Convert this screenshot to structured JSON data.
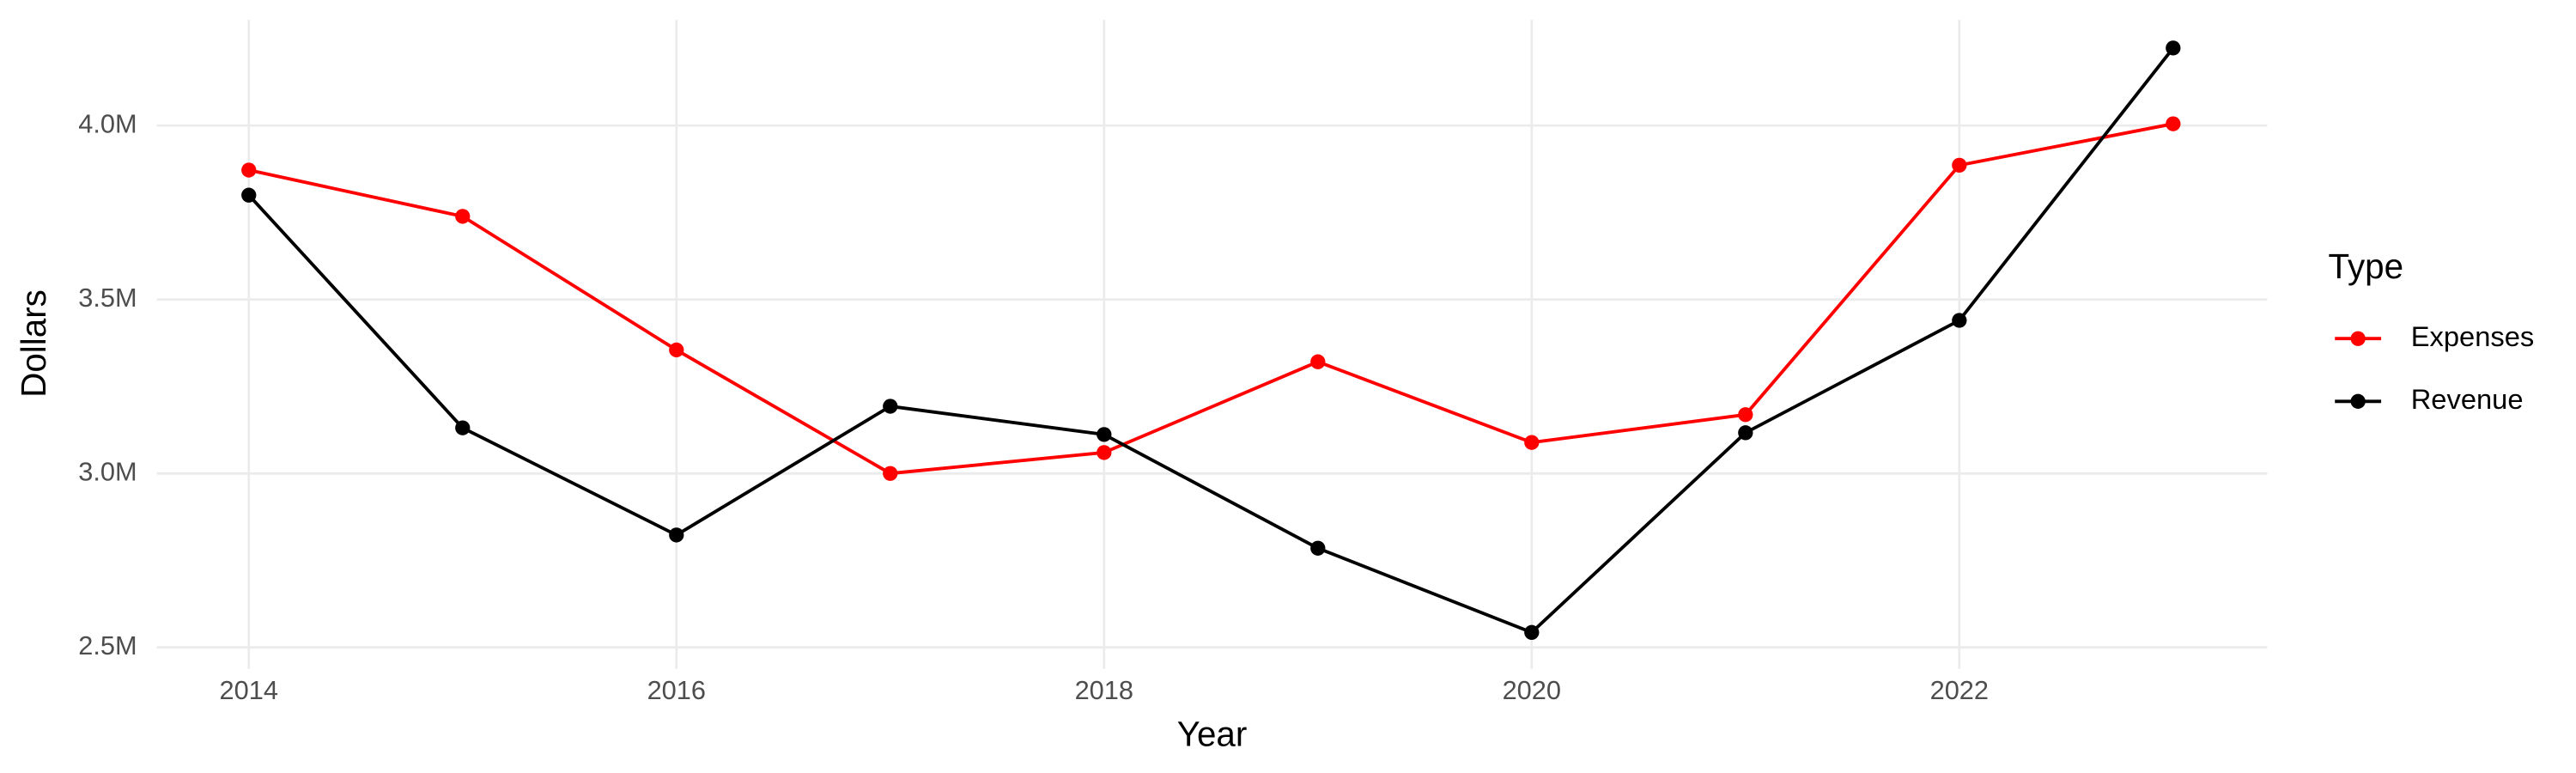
{
  "chart_data": {
    "type": "line",
    "x_label": "Year",
    "y_label": "Dollars",
    "legend_title": "Type",
    "legend_position": "right",
    "grid": true,
    "x": [
      2014,
      2015,
      2016,
      2017,
      2018,
      2019,
      2020,
      2021,
      2022,
      2023
    ],
    "xlim": [
      2013.57,
      2023.44
    ],
    "xticks": [
      2014,
      2016,
      2018,
      2020,
      2022
    ],
    "ylim": [
      2438000,
      4304000
    ],
    "yticks": [
      {
        "value": 2500000,
        "label": "2.5M"
      },
      {
        "value": 3000000,
        "label": "3.0M"
      },
      {
        "value": 3500000,
        "label": "3.5M"
      },
      {
        "value": 4000000,
        "label": "4.0M"
      }
    ],
    "series": [
      {
        "name": "Expenses",
        "color": "#ff0000",
        "values": [
          3872000,
          3739000,
          3355000,
          3000000,
          3060000,
          3321000,
          3089000,
          3169000,
          3886000,
          4005000
        ]
      },
      {
        "name": "Revenue",
        "color": "#000000",
        "values": [
          3800000,
          3131000,
          2823000,
          3193000,
          3112000,
          2785000,
          2543000,
          3117000,
          3440000,
          4223000
        ]
      }
    ]
  }
}
